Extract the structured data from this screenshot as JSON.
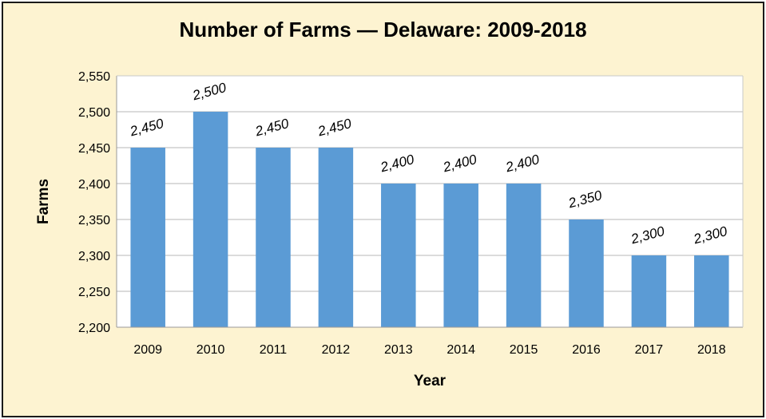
{
  "chart_data": {
    "type": "bar",
    "title": "Number of Farms — Delaware: 2009-2018",
    "xlabel": "Year",
    "ylabel": "Farms",
    "categories": [
      "2009",
      "2010",
      "2011",
      "2012",
      "2013",
      "2014",
      "2015",
      "2016",
      "2017",
      "2018"
    ],
    "values": [
      2450,
      2500,
      2450,
      2450,
      2400,
      2400,
      2400,
      2350,
      2300,
      2300
    ],
    "data_labels": [
      "2,450",
      "2,500",
      "2,450",
      "2,450",
      "2,400",
      "2,400",
      "2,400",
      "2,350",
      "2,300",
      "2,300"
    ],
    "ylim": [
      2200,
      2550
    ],
    "yticks": [
      "2,200",
      "2,250",
      "2,300",
      "2,350",
      "2,400",
      "2,450",
      "2,500",
      "2,550"
    ],
    "ytick_values": [
      2200,
      2250,
      2300,
      2350,
      2400,
      2450,
      2500,
      2550
    ],
    "grid": true,
    "legend": "none",
    "colors": {
      "bar": "#5b9bd5",
      "background": "#fdf3d1",
      "plot_background": "#ffffff",
      "grid": "#b7b7b7",
      "border": "#1a1a1a"
    }
  }
}
